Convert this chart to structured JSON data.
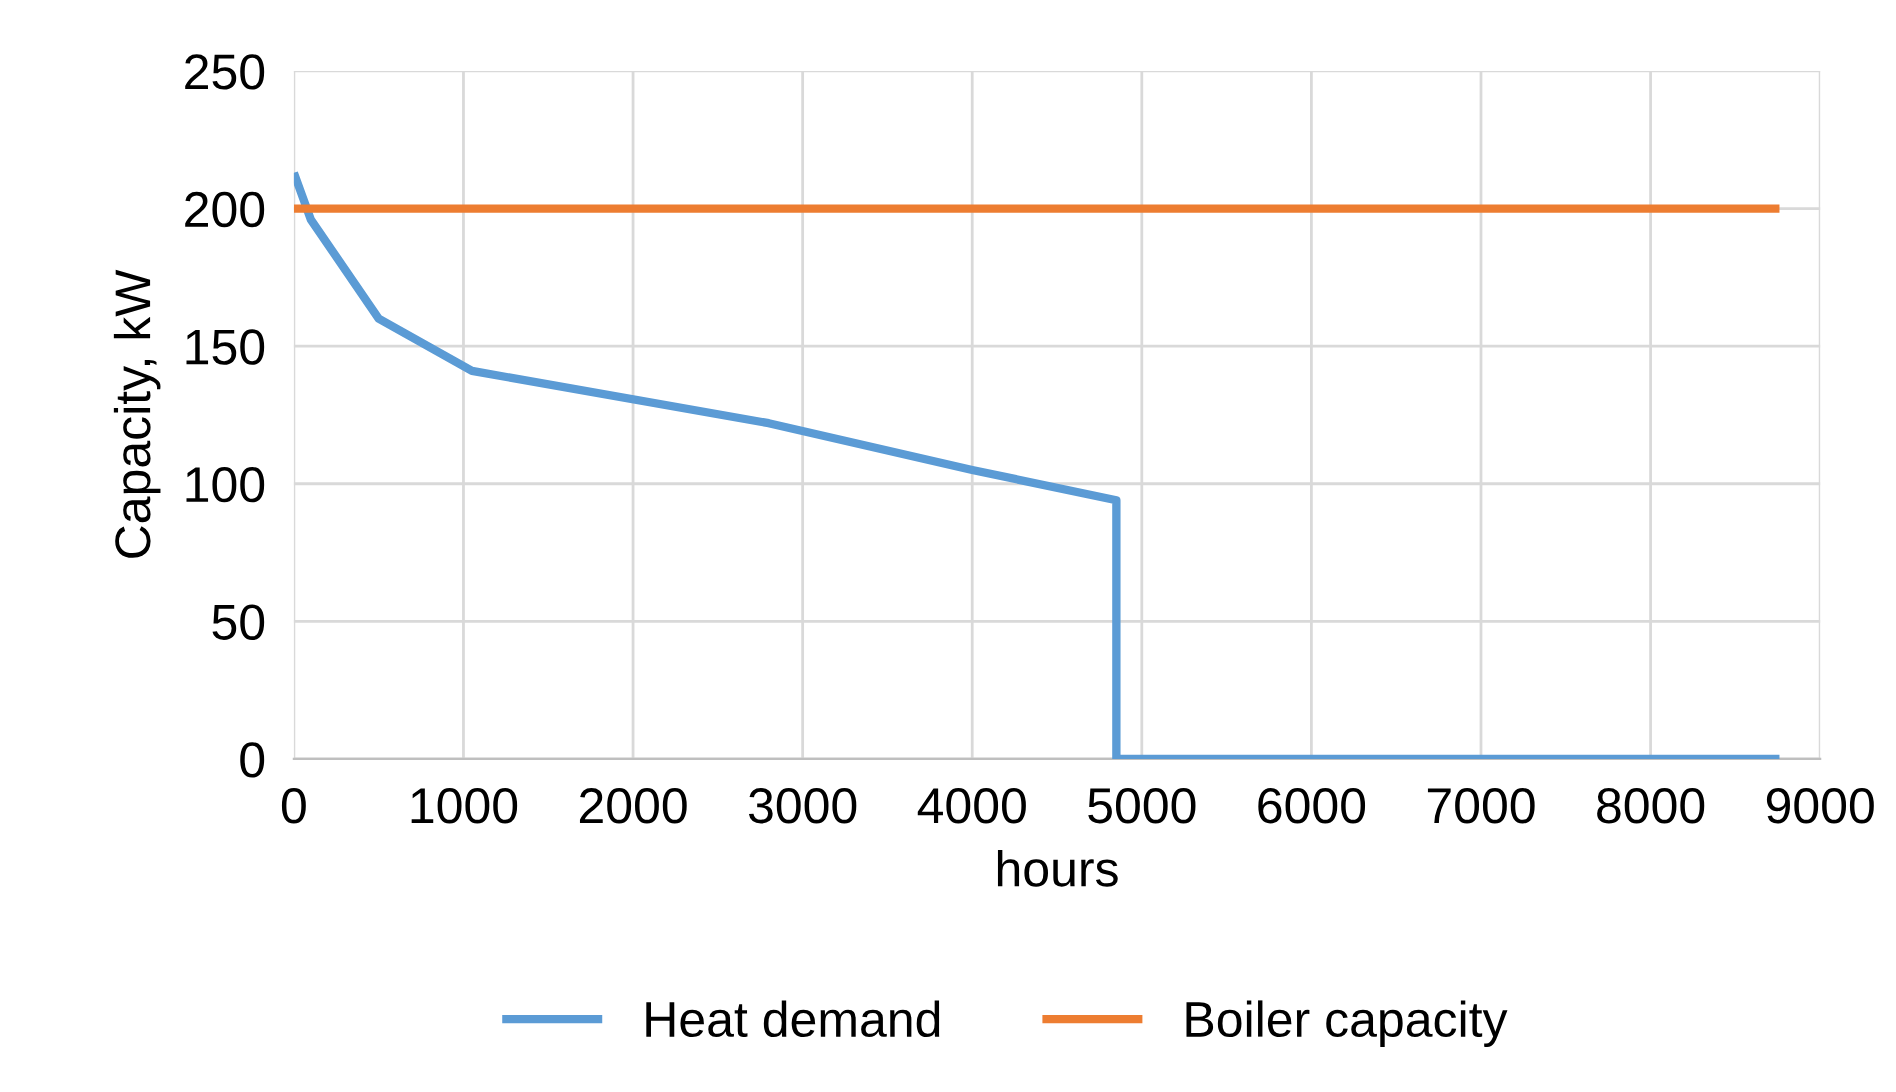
{
  "chart_data": {
    "type": "line",
    "xlabel": "hours",
    "ylabel": "Capacity, kW",
    "xlim": [
      0,
      9000
    ],
    "xticks": [
      0,
      1000,
      2000,
      3000,
      4000,
      5000,
      6000,
      7000,
      8000,
      9000
    ],
    "ylim": [
      0,
      250
    ],
    "yticks": [
      0,
      50,
      100,
      150,
      200,
      250
    ],
    "grid": true,
    "legend": "bottom",
    "marker": "none",
    "line_style": "solid",
    "series": [
      {
        "name": "Heat demand",
        "color": "#5b9bd5",
        "x": [
          0,
          100,
          500,
          1050,
          2800,
          4000,
          4850,
          4850,
          8760
        ],
        "values": [
          213,
          196,
          160,
          141,
          122,
          105,
          94,
          0,
          0
        ]
      },
      {
        "name": "Boiler capacity",
        "color": "#ed7d31",
        "x": [
          0,
          8760
        ],
        "values": [
          200,
          200
        ]
      }
    ]
  }
}
